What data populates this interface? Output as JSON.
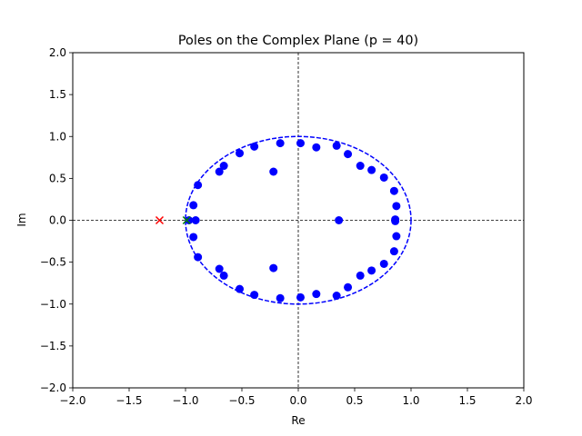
{
  "chart_data": {
    "type": "scatter",
    "title": "Poles on the Complex Plane (p = 40)",
    "xlabel": "Re",
    "ylabel": "Im",
    "xlim": [
      -2.0,
      2.0
    ],
    "ylim": [
      -2.0,
      2.0
    ],
    "xticks": [
      "−2.0",
      "−1.5",
      "−1.0",
      "−0.5",
      "0.0",
      "0.5",
      "1.0",
      "1.5",
      "2.0"
    ],
    "yticks": [
      "−2.0",
      "−1.5",
      "−1.0",
      "−0.5",
      "0.0",
      "0.5",
      "1.0",
      "1.5",
      "2.0"
    ],
    "xtick_values": [
      -2.0,
      -1.5,
      -1.0,
      -0.5,
      0.0,
      0.5,
      1.0,
      1.5,
      2.0
    ],
    "ytick_values": [
      -2.0,
      -1.5,
      -1.0,
      -0.5,
      0.0,
      0.5,
      1.0,
      1.5,
      2.0
    ],
    "grid": false,
    "reference_lines": [
      {
        "orientation": "horizontal",
        "value": 0.0,
        "color": "#000000",
        "style": "dashed"
      },
      {
        "orientation": "vertical",
        "value": 0.0,
        "color": "#000000",
        "style": "dashed"
      }
    ],
    "unit_circle": {
      "center": [
        0,
        0
      ],
      "radius": 1.0,
      "color": "#0000ff",
      "style": "dashed"
    },
    "series": [
      {
        "marker": "circle",
        "color": "#0000ff",
        "points": [
          [
            0.02,
            0.92
          ],
          [
            0.16,
            0.87
          ],
          [
            0.34,
            0.89
          ],
          [
            0.44,
            0.79
          ],
          [
            0.55,
            0.65
          ],
          [
            0.65,
            0.6
          ],
          [
            0.76,
            0.51
          ],
          [
            0.85,
            0.35
          ],
          [
            0.87,
            0.17
          ],
          [
            0.86,
            0.01
          ],
          [
            0.86,
            -0.01
          ],
          [
            0.87,
            -0.19
          ],
          [
            0.85,
            -0.37
          ],
          [
            0.76,
            -0.52
          ],
          [
            0.65,
            -0.6
          ],
          [
            0.55,
            -0.66
          ],
          [
            0.44,
            -0.8
          ],
          [
            0.34,
            -0.9
          ],
          [
            0.16,
            -0.88
          ],
          [
            0.02,
            -0.92
          ],
          [
            -0.16,
            -0.93
          ],
          [
            -0.39,
            -0.89
          ],
          [
            -0.52,
            -0.82
          ],
          [
            -0.66,
            -0.66
          ],
          [
            -0.7,
            -0.58
          ],
          [
            -0.89,
            -0.44
          ],
          [
            -0.93,
            -0.2
          ],
          [
            -0.91,
            0.0
          ],
          [
            -0.97,
            0.0
          ],
          [
            -0.93,
            0.18
          ],
          [
            -0.89,
            0.42
          ],
          [
            -0.7,
            0.58
          ],
          [
            -0.66,
            0.65
          ],
          [
            -0.52,
            0.8
          ],
          [
            -0.39,
            0.88
          ],
          [
            -0.16,
            0.92
          ],
          [
            -0.22,
            0.58
          ],
          [
            -0.22,
            -0.57
          ],
          [
            0.36,
            0.0
          ]
        ]
      },
      {
        "marker": "x",
        "color": "#ff0000",
        "points": [
          [
            -1.23,
            0.0
          ]
        ]
      },
      {
        "marker": "x",
        "color": "#008000",
        "points": [
          [
            -0.99,
            0.0
          ]
        ]
      }
    ]
  }
}
